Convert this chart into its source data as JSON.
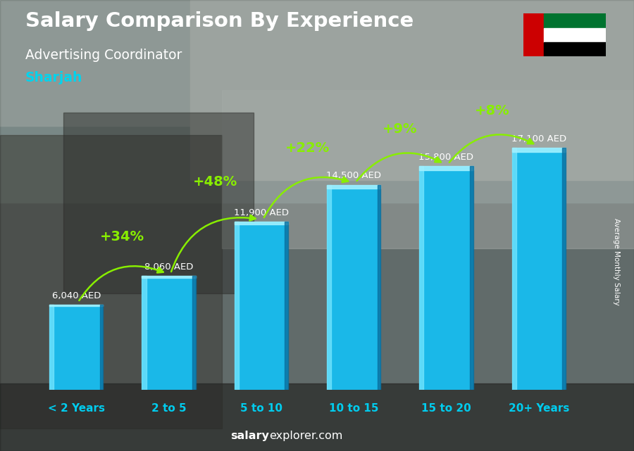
{
  "title": "Salary Comparison By Experience",
  "subtitle": "Advertising Coordinator",
  "location": "Sharjah",
  "categories": [
    "< 2 Years",
    "2 to 5",
    "5 to 10",
    "10 to 15",
    "15 to 20",
    "20+ Years"
  ],
  "values": [
    6040,
    8060,
    11900,
    14500,
    15800,
    17100
  ],
  "value_labels": [
    "6,040 AED",
    "8,060 AED",
    "11,900 AED",
    "14,500 AED",
    "15,800 AED",
    "17,100 AED"
  ],
  "pct_changes": [
    "+34%",
    "+48%",
    "+22%",
    "+9%",
    "+8%"
  ],
  "bar_color_main": "#1ab8e8",
  "bar_color_light": "#4dd4f5",
  "bar_color_dark": "#0e8cbe",
  "bar_edge_color": "#7ae8ff",
  "bg_color": "#b0b8b0",
  "title_color": "#ffffff",
  "subtitle_color": "#ffffff",
  "location_color": "#00d4ee",
  "label_color": "#ffffff",
  "pct_color": "#88ee00",
  "xlabel_color": "#00ccee",
  "website_bold": "salary",
  "website_normal": "explorer.com",
  "ylabel_text": "Average Monthly Salary",
  "figsize": [
    9.0,
    6.41
  ],
  "dpi": 100
}
